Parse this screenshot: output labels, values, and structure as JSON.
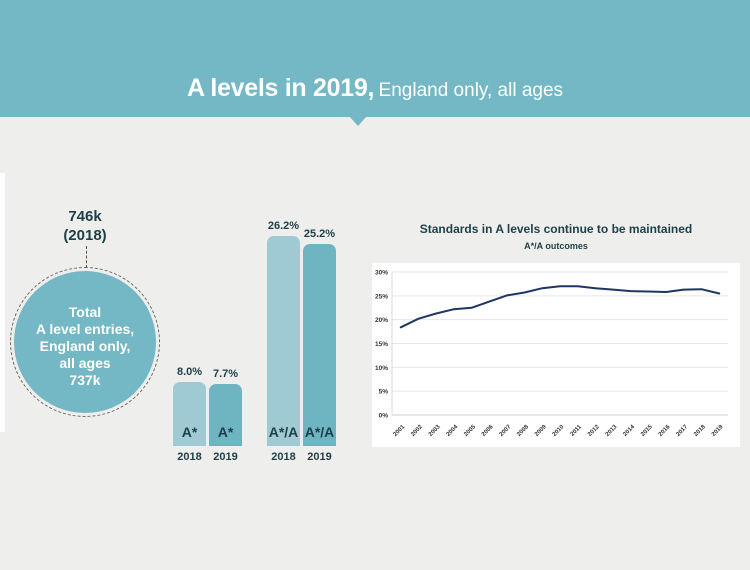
{
  "header": {
    "title_main": "A levels in 2019,",
    "title_sub": "England only, all ages"
  },
  "colors": {
    "teal": "#73b8c4",
    "bar_2018": "#9fcad3",
    "bar_2019": "#6fb4c1",
    "dark_text": "#1d3f48",
    "line": "#1f3566"
  },
  "total_entries": {
    "previous_value": "746k",
    "previous_year": "(2018)",
    "lines": [
      "Total",
      "A level entries,",
      "England only,",
      "all ages",
      "737k"
    ]
  },
  "bar_groups": [
    {
      "grade": "A*",
      "bars": [
        {
          "year": "2018",
          "value": 8.0,
          "value_label": "8.0%",
          "label": "A*"
        },
        {
          "year": "2019",
          "value": 7.7,
          "value_label": "7.7%",
          "label": "A*"
        }
      ]
    },
    {
      "grade": "A*/A",
      "bars": [
        {
          "year": "2018",
          "value": 26.2,
          "value_label": "26.2%",
          "label": "A*/A"
        },
        {
          "year": "2019",
          "value": 25.2,
          "value_label": "25.2%",
          "label": "A*/A"
        }
      ]
    }
  ],
  "chart_data": {
    "type": "line",
    "title": "Standards in A levels continue to be maintained",
    "subtitle": "A*/A outcomes",
    "xlabel": "",
    "ylabel": "",
    "x": [
      "2001",
      "2002",
      "2003",
      "2004",
      "2005",
      "2006",
      "2007",
      "2008",
      "2009",
      "2010",
      "2011",
      "2012",
      "2013",
      "2014",
      "2015",
      "2016",
      "2017",
      "2018",
      "2019"
    ],
    "series": [
      {
        "name": "A*/A outcomes",
        "values": [
          18.4,
          20.2,
          21.3,
          22.2,
          22.5,
          23.8,
          25.1,
          25.7,
          26.6,
          27.0,
          27.0,
          26.6,
          26.3,
          26.0,
          25.9,
          25.8,
          26.3,
          26.4,
          25.5
        ]
      }
    ],
    "ylim": [
      0,
      30
    ],
    "yticks": [
      0,
      5,
      10,
      15,
      20,
      25,
      30
    ],
    "ytick_labels": [
      "0%",
      "5%",
      "10%",
      "15%",
      "20%",
      "25%",
      "30%"
    ],
    "grid": true,
    "legend": "none"
  }
}
